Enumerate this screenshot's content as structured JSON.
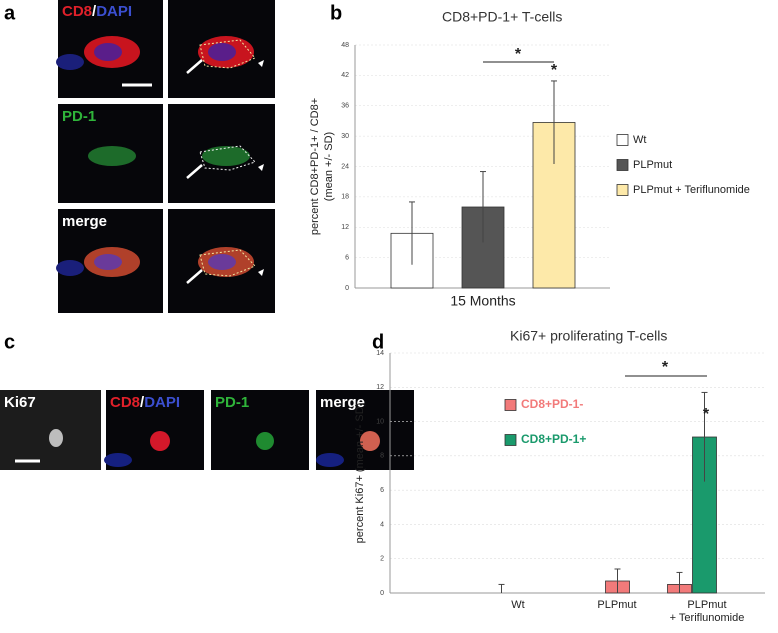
{
  "panel_letters": [
    "a",
    "b",
    "c",
    "d"
  ],
  "panel_a": {
    "cd8": "CD8",
    "slash": "/",
    "dapi": "DAPI",
    "pd1": "PD-1",
    "merge": "merge"
  },
  "panel_c": {
    "ki67": "Ki67",
    "cd8": "CD8",
    "slash": "/",
    "dapi": "DAPI",
    "pd1": "PD-1",
    "merge": "merge"
  },
  "chart_data": [
    {
      "type": "bar",
      "title": "CD8+PD-1+ T-cells",
      "ylabel": [
        "percent CD8+PD-1+ / CD8+",
        "(mean +/- SD)"
      ],
      "categories": [
        "15 Months"
      ],
      "series": [
        {
          "name": "Wt",
          "color": "#ffffff",
          "values": [
            10.8
          ],
          "errors": [
            6.2
          ]
        },
        {
          "name": "PLPmut",
          "color": "#555555",
          "values": [
            16
          ],
          "errors": [
            7
          ]
        },
        {
          "name": "PLPmut + Teriflunomide",
          "color": "#fde9a9",
          "values": [
            32.7
          ],
          "errors": [
            8.2
          ]
        }
      ],
      "ylim": [
        0,
        48
      ],
      "yticks": [
        0,
        6,
        12,
        18,
        24,
        30,
        36,
        42,
        48
      ],
      "grid": true,
      "legend": "outside right",
      "annotations": [
        "*",
        "*"
      ]
    },
    {
      "type": "bar",
      "title": "Ki67+ proliferating T-cells",
      "ylabel": [
        "percent Ki67+ (mean +/- SD)"
      ],
      "categories": [
        [
          "Wt"
        ],
        [
          "PLPmut"
        ],
        [
          "PLPmut",
          "+ Teriflunomide"
        ]
      ],
      "series": [
        {
          "name": "CD8+PD-1-",
          "color": "#f27a7a",
          "values": [
            0,
            0.7,
            0.5
          ],
          "errors": [
            0.5,
            0.7,
            0.7
          ]
        },
        {
          "name": "CD8+PD-1+",
          "color": "#1a9a6c",
          "values": [
            0,
            0,
            9.1
          ],
          "errors": [
            null,
            null,
            2.6
          ]
        }
      ],
      "ylim": [
        0,
        14
      ],
      "yticks": [
        0,
        2,
        4,
        6,
        8,
        10,
        12,
        14
      ],
      "grid": true,
      "legend": "upper left",
      "annotations": [
        "*",
        "*"
      ]
    }
  ]
}
